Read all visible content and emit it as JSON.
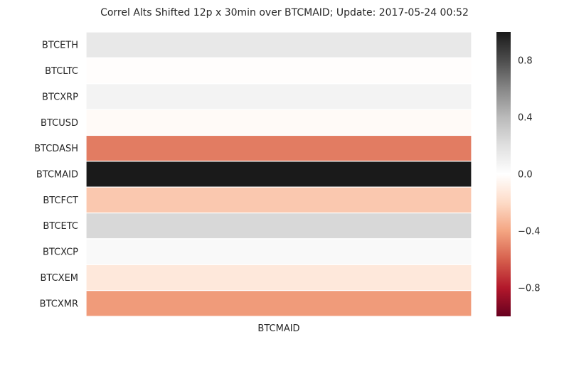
{
  "chart_data": {
    "type": "heatmap",
    "title": "Correl Alts Shifted 12p x 30min over BTCMAID; Update: 2017-05-24 00:52",
    "columns": [
      "BTCMAID"
    ],
    "rows": [
      "BTCETH",
      "BTCLTC",
      "BTCXRP",
      "BTCUSD",
      "BTCDASH",
      "BTCMAID",
      "BTCFCT",
      "BTCETC",
      "BTCXCP",
      "BTCXEM",
      "BTCXMR"
    ],
    "values": [
      0.15,
      -0.01,
      0.08,
      -0.03,
      -0.52,
      1.0,
      -0.27,
      0.24,
      0.04,
      -0.13,
      -0.43
    ],
    "colormap": "RdGy",
    "vmin": -1.0,
    "vmax": 1.0,
    "colorbar_ticks": [
      0.8,
      0.4,
      0.0,
      -0.4,
      -0.8
    ],
    "colorbar_tick_labels": [
      "0.8",
      "0.4",
      "0.0",
      "−0.4",
      "−0.8"
    ]
  }
}
